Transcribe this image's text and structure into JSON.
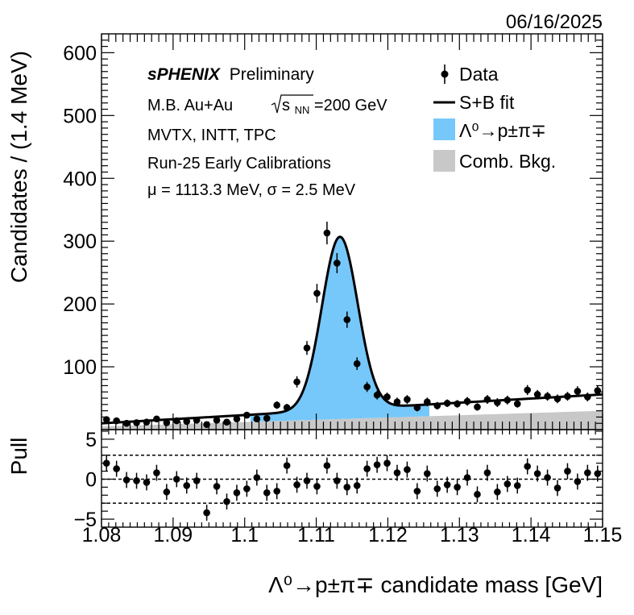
{
  "chart_data": {
    "date": "06/16/2025",
    "xlabel_main": "Λ⁰→p±π∓ candidate mass [GeV]",
    "main_panel": {
      "type": "scatter",
      "ylabel": "Candidates / (1.4 MeV)",
      "xlim": [
        1.08,
        1.15
      ],
      "ylim": [
        0,
        630
      ],
      "yticks": [
        100,
        200,
        300,
        400,
        500,
        600
      ],
      "annotations": {
        "experiment": "sPHENIX",
        "status": "Preliminary",
        "system": "M.B. Au+Au",
        "sqrt_s": "s",
        "sqrt_s_sub": "NN",
        "energy": "=200 GeV",
        "detectors": "MVTX, INTT, TPC",
        "calibration": "Run-25 Early Calibrations",
        "fit_params": "μ = 1113.3 MeV,   σ = 2.5 MeV"
      },
      "legend": {
        "placement": "top-right",
        "entries": [
          {
            "label": "Data",
            "style": "marker"
          },
          {
            "label": "S+B fit",
            "style": "line"
          },
          {
            "label": "Λ⁰→p±π∓",
            "style": "fill",
            "color": "#76c8fb"
          },
          {
            "label": "Comb. Bkg.",
            "style": "fill",
            "color": "#c8c8c8"
          }
        ]
      },
      "x": [
        1.0807,
        1.0821,
        1.0835,
        1.0849,
        1.0863,
        1.0877,
        1.0891,
        1.0905,
        1.0919,
        1.0933,
        1.0947,
        1.0961,
        1.0975,
        1.0989,
        1.1003,
        1.1017,
        1.1031,
        1.1045,
        1.1059,
        1.1073,
        1.1087,
        1.1101,
        1.1115,
        1.1129,
        1.1143,
        1.1157,
        1.1171,
        1.1185,
        1.1199,
        1.1213,
        1.1227,
        1.1241,
        1.1255,
        1.1269,
        1.1283,
        1.1297,
        1.1311,
        1.1325,
        1.1339,
        1.1353,
        1.1367,
        1.1381,
        1.1395,
        1.1409,
        1.1423,
        1.1437,
        1.1451,
        1.1465,
        1.1479,
        1.1493
      ],
      "y": [
        16,
        14,
        10,
        11,
        12,
        17,
        11,
        14,
        13,
        15,
        8,
        15,
        12,
        17,
        23,
        17,
        18,
        39,
        35,
        76,
        130,
        217,
        313,
        265,
        175,
        105,
        68,
        55,
        52,
        44,
        48,
        35,
        44,
        38,
        42,
        41,
        45,
        36,
        48,
        43,
        47,
        41,
        63,
        56,
        53,
        49,
        53,
        61,
        52,
        62
      ],
      "y_err": [
        4,
        4,
        3,
        3,
        3,
        4,
        3,
        4,
        4,
        4,
        3,
        4,
        3,
        4,
        5,
        4,
        4,
        6,
        6,
        9,
        11,
        15,
        18,
        16,
        13,
        10,
        8,
        7,
        7,
        7,
        7,
        6,
        7,
        6,
        6,
        6,
        7,
        6,
        7,
        7,
        7,
        6,
        8,
        7,
        7,
        7,
        7,
        8,
        7,
        8
      ],
      "fit": {
        "mu": 1.1133,
        "sigma": 0.0025,
        "signal_amplitude": 275,
        "background_at_xmin": 5,
        "background_at_xmax": 30,
        "sb_at_xmin": 10,
        "sb_at_xmax": 56
      }
    },
    "pull_panel": {
      "type": "scatter",
      "ylabel": "Pull",
      "ylim": [
        -6,
        6.2
      ],
      "yticks": [
        -5,
        0,
        5
      ],
      "dashed_lines": [
        -3,
        0,
        3
      ],
      "x": [
        1.0807,
        1.0821,
        1.0835,
        1.0849,
        1.0863,
        1.0877,
        1.0891,
        1.0905,
        1.0919,
        1.0933,
        1.0947,
        1.0961,
        1.0975,
        1.0989,
        1.1003,
        1.1017,
        1.1031,
        1.1045,
        1.1059,
        1.1073,
        1.1087,
        1.1101,
        1.1115,
        1.1129,
        1.1143,
        1.1157,
        1.1171,
        1.1185,
        1.1199,
        1.1213,
        1.1227,
        1.1241,
        1.1255,
        1.1269,
        1.1283,
        1.1297,
        1.1311,
        1.1325,
        1.1339,
        1.1353,
        1.1367,
        1.1381,
        1.1395,
        1.1409,
        1.1423,
        1.1437,
        1.1451,
        1.1465,
        1.1479,
        1.1493
      ],
      "y": [
        2.0,
        1.3,
        -0.1,
        -0.2,
        -0.4,
        0.8,
        -1.6,
        0.0,
        -0.8,
        -0.2,
        -4.2,
        -0.9,
        -2.8,
        -1.7,
        -1.2,
        0.2,
        -1.7,
        -1.5,
        1.7,
        -0.7,
        -0.2,
        -0.9,
        1.7,
        -0.2,
        -1.0,
        -0.8,
        1.3,
        1.8,
        2.0,
        0.8,
        1.2,
        -1.5,
        0.7,
        -1.2,
        -0.7,
        -1.0,
        0.2,
        -1.9,
        0.8,
        -1.6,
        -0.6,
        -0.8,
        1.6,
        0.7,
        0.2,
        -1.1,
        1.0,
        -0.3,
        0.8,
        0.7
      ],
      "y_err": [
        1,
        1,
        1,
        1,
        1,
        1,
        1,
        1,
        1,
        1,
        1,
        1,
        1,
        1,
        1,
        1,
        1,
        1,
        1,
        1,
        1,
        1,
        1,
        1,
        1,
        1,
        1,
        1,
        1,
        1,
        1,
        1,
        1,
        1,
        1,
        1,
        1,
        1,
        1,
        1,
        1,
        1,
        1,
        1,
        1,
        1,
        1,
        1,
        1,
        1
      ]
    },
    "xticks": [
      1.08,
      1.09,
      1.1,
      1.11,
      1.12,
      1.13,
      1.14,
      1.15
    ],
    "xtick_labels": [
      "1.08",
      "1.09",
      "1.1",
      "1.11",
      "1.12",
      "1.13",
      "1.14",
      "1.15"
    ]
  }
}
